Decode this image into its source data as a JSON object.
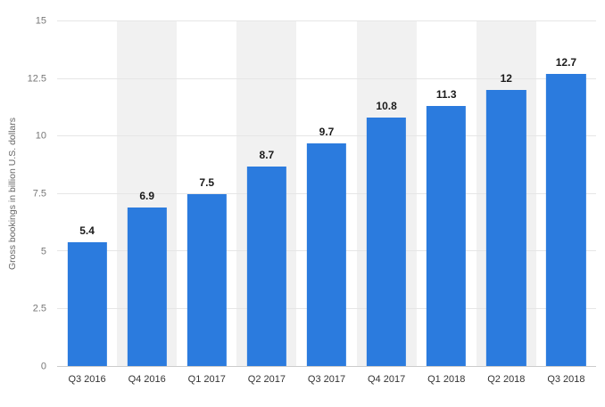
{
  "chart_data": {
    "type": "bar",
    "title": "",
    "xlabel": "",
    "ylabel": "Gross bookings in billion U.S. dollars",
    "categories": [
      "Q3 2016",
      "Q4 2016",
      "Q1 2017",
      "Q2 2017",
      "Q3 2017",
      "Q4 2017",
      "Q1 2018",
      "Q2 2018",
      "Q3 2018"
    ],
    "values": [
      5.4,
      6.9,
      7.5,
      8.7,
      9.7,
      10.8,
      11.3,
      12,
      12.7
    ],
    "value_labels": [
      "5.4",
      "6.9",
      "7.5",
      "8.7",
      "9.7",
      "10.8",
      "11.3",
      "12",
      "12.7"
    ],
    "ylim": [
      0,
      15
    ],
    "yticks": [
      0,
      2.5,
      5,
      7.5,
      10,
      12.5,
      15
    ],
    "ytick_labels": [
      "0",
      "2.5",
      "5",
      "7.5",
      "10",
      "12.5",
      "15"
    ],
    "grid": true,
    "legend": "none",
    "bar_color": "#2b7bde",
    "band_color": "#f1f1f1",
    "grid_color": "#e6e6e6"
  }
}
